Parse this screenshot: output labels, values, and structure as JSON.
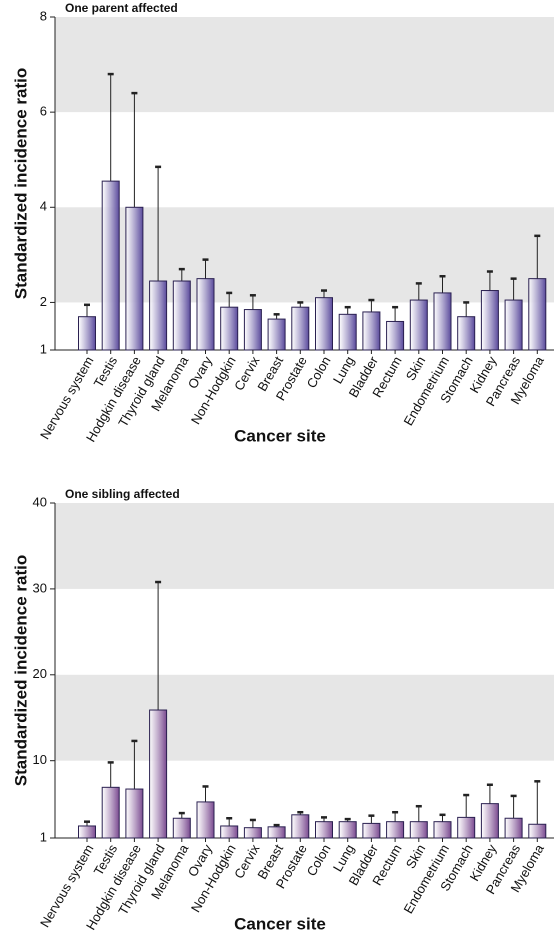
{
  "chart_data": [
    {
      "type": "bar",
      "title": "One parent affected",
      "xlabel": "Cancer site",
      "ylabel": "Standardized incidence ratio",
      "categories": [
        "Nervous system",
        "Testis",
        "Hodgkin disease",
        "Thyroid gland",
        "Melanoma",
        "Ovary",
        "Non-Hodgkin",
        "Cervix",
        "Breast",
        "Prostate",
        "Colon",
        "Lung",
        "Bladder",
        "Rectum",
        "Skin",
        "Endometrium",
        "Stomach",
        "Kidney",
        "Pancreas",
        "Myeloma"
      ],
      "values": [
        1.7,
        4.55,
        4.0,
        2.45,
        2.45,
        2.5,
        1.9,
        1.85,
        1.65,
        1.9,
        2.1,
        1.75,
        1.8,
        1.6,
        2.05,
        2.2,
        1.7,
        2.25,
        2.05,
        2.5
      ],
      "errors": [
        0.25,
        2.25,
        2.4,
        2.4,
        0.25,
        0.4,
        0.3,
        0.3,
        0.1,
        0.1,
        0.15,
        0.15,
        0.25,
        0.3,
        0.35,
        0.35,
        0.3,
        0.4,
        0.45,
        0.9
      ],
      "color": "#5a4a9c",
      "band_color": "#e6e6e6",
      "ylim": [
        1,
        8
      ],
      "yticks": [
        1,
        2,
        4,
        6,
        8
      ]
    },
    {
      "type": "bar",
      "title": "One sibling affected",
      "xlabel": "Cancer site",
      "ylabel": "Standardized incidence ratio",
      "categories": [
        "Nervous system",
        "Testis",
        "Hodgkin disease",
        "Thyroid gland",
        "Melanoma",
        "Ovary",
        "Non-Hodgkin",
        "Cervix",
        "Breast",
        "Prostate",
        "Colon",
        "Lung",
        "Bladder",
        "Rectum",
        "Skin",
        "Endometrium",
        "Stomach",
        "Kidney",
        "Pancreas",
        "Myeloma"
      ],
      "values": [
        2.4,
        6.9,
        6.7,
        15.9,
        3.3,
        5.2,
        2.4,
        2.2,
        2.3,
        3.7,
        2.9,
        2.9,
        2.7,
        2.9,
        2.9,
        2.9,
        3.4,
        5.0,
        3.3,
        2.6
      ],
      "errors": [
        0.5,
        2.9,
        5.6,
        14.9,
        0.6,
        1.8,
        0.9,
        0.9,
        0.2,
        0.3,
        0.5,
        0.3,
        0.9,
        1.1,
        1.8,
        0.8,
        2.6,
        2.2,
        2.6,
        5.0
      ],
      "color": "#7a4a90",
      "band_color": "#e6e6e6",
      "ylim": [
        1,
        40
      ],
      "yticks": [
        1,
        10,
        20,
        30,
        40
      ]
    }
  ]
}
